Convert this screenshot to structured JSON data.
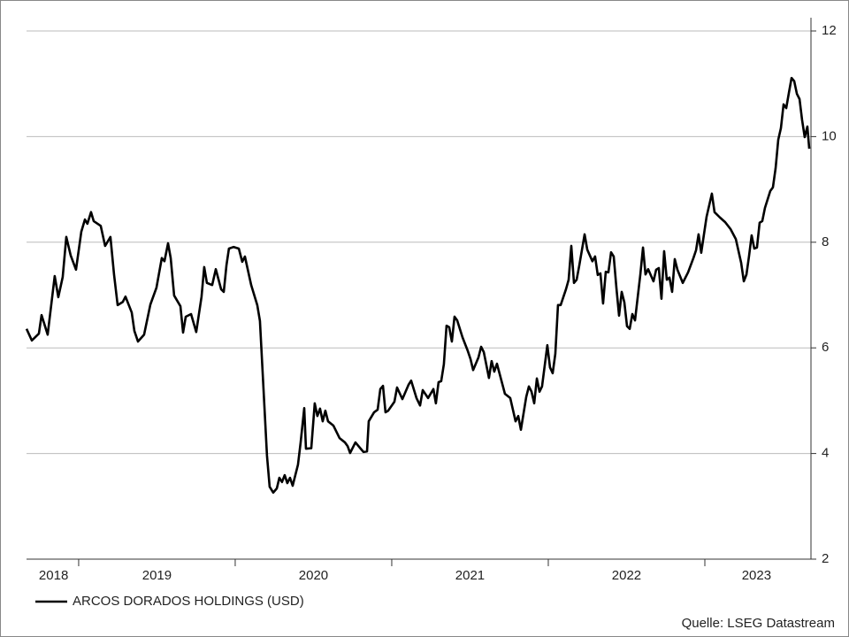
{
  "chart_data": {
    "type": "line",
    "xlim": [
      2018.667,
      2023.678
    ],
    "ylim": [
      2,
      12
    ],
    "yticks": [
      2,
      4,
      6,
      8,
      10,
      12
    ],
    "xticks": [
      2019,
      2020,
      2021,
      2022,
      2023
    ],
    "xtick_labels": [
      {
        "value": 2018.84,
        "label": "2018"
      },
      {
        "value": 2019.5,
        "label": "2019"
      },
      {
        "value": 2020.5,
        "label": "2020"
      },
      {
        "value": 2021.5,
        "label": "2021"
      },
      {
        "value": 2022.5,
        "label": "2022"
      },
      {
        "value": 2023.33,
        "label": "2023"
      }
    ],
    "grid": true,
    "legend": "bottom-left",
    "source": "Quelle: LSEG Datastream",
    "x": [
      2018.667,
      2018.701,
      2018.746,
      2018.763,
      2018.802,
      2018.847,
      2018.87,
      2018.898,
      2018.921,
      2018.949,
      2018.983,
      2019.017,
      2019.04,
      2019.056,
      2019.079,
      2019.096,
      2019.141,
      2019.169,
      2019.203,
      2019.226,
      2019.249,
      2019.282,
      2019.299,
      2019.339,
      2019.356,
      2019.379,
      2019.418,
      2019.458,
      2019.497,
      2019.531,
      2019.548,
      2019.571,
      2019.588,
      2019.61,
      2019.65,
      2019.667,
      2019.684,
      2019.718,
      2019.751,
      2019.785,
      2019.802,
      2019.819,
      2019.853,
      2019.876,
      2019.91,
      2019.927,
      2019.944,
      2019.96,
      2019.989,
      2020.023,
      2020.045,
      2020.062,
      2020.102,
      2020.141,
      2020.158,
      2020.175,
      2020.203,
      2020.22,
      2020.243,
      2020.266,
      2020.282,
      2020.299,
      2020.316,
      2020.333,
      2020.35,
      2020.367,
      2020.401,
      2020.418,
      2020.441,
      2020.452,
      2020.486,
      2020.508,
      2020.525,
      2020.542,
      2020.559,
      2020.576,
      2020.593,
      2020.627,
      2020.667,
      2020.701,
      2020.718,
      2020.734,
      2020.768,
      2020.802,
      2020.819,
      2020.842,
      2020.853,
      2020.887,
      2020.91,
      2020.927,
      2020.944,
      2020.96,
      2020.977,
      2021.017,
      2021.034,
      2021.068,
      2021.107,
      2021.124,
      2021.158,
      2021.181,
      2021.198,
      2021.232,
      2021.266,
      2021.282,
      2021.299,
      2021.316,
      2021.333,
      2021.35,
      2021.367,
      2021.384,
      2021.401,
      2021.418,
      2021.452,
      2021.486,
      2021.503,
      2021.52,
      2021.554,
      2021.571,
      2021.588,
      2021.621,
      2021.638,
      2021.655,
      2021.672,
      2021.706,
      2021.723,
      2021.757,
      2021.791,
      2021.808,
      2021.825,
      2021.859,
      2021.876,
      2021.893,
      2021.91,
      2021.927,
      2021.944,
      2021.96,
      2021.994,
      2022.011,
      2022.028,
      2022.045,
      2022.062,
      2022.079,
      2022.113,
      2022.13,
      2022.147,
      2022.164,
      2022.181,
      2022.198,
      2022.232,
      2022.249,
      2022.282,
      2022.299,
      2022.316,
      2022.333,
      2022.35,
      2022.367,
      2022.384,
      2022.401,
      2022.418,
      2022.435,
      2022.452,
      2022.469,
      2022.486,
      2022.503,
      2022.52,
      2022.537,
      2022.554,
      2022.588,
      2022.605,
      2022.621,
      2022.638,
      2022.672,
      2022.689,
      2022.706,
      2022.723,
      2022.74,
      2022.757,
      2022.774,
      2022.791,
      2022.808,
      2022.825,
      2022.859,
      2022.893,
      2022.927,
      2022.944,
      2022.96,
      2022.977,
      2023.011,
      2023.045,
      2023.062,
      2023.096,
      2023.13,
      2023.164,
      2023.198,
      2023.232,
      2023.249,
      2023.266,
      2023.282,
      2023.299,
      2023.316,
      2023.333,
      2023.35,
      2023.367,
      2023.384,
      2023.418,
      2023.435,
      2023.452,
      2023.469,
      2023.486,
      2023.503,
      2023.52,
      2023.537,
      2023.554,
      2023.571,
      2023.588,
      2023.605,
      2023.621,
      2023.638,
      2023.655,
      2023.667
    ],
    "series": [
      {
        "name": "ARCOS DORADOS HOLDINGS (USD)",
        "color": "#000000",
        "values": [
          6.36,
          6.14,
          6.27,
          6.62,
          6.25,
          7.36,
          6.96,
          7.34,
          8.1,
          7.75,
          7.48,
          8.2,
          8.43,
          8.35,
          8.57,
          8.4,
          8.31,
          7.93,
          8.1,
          7.39,
          6.81,
          6.87,
          6.97,
          6.67,
          6.32,
          6.12,
          6.25,
          6.82,
          7.14,
          7.7,
          7.64,
          7.98,
          7.7,
          6.99,
          6.79,
          6.29,
          6.59,
          6.64,
          6.3,
          6.97,
          7.53,
          7.23,
          7.19,
          7.49,
          7.11,
          7.06,
          7.56,
          7.88,
          7.91,
          7.88,
          7.63,
          7.73,
          7.19,
          6.81,
          6.51,
          5.55,
          3.96,
          3.37,
          3.26,
          3.34,
          3.54,
          3.46,
          3.59,
          3.44,
          3.54,
          3.39,
          3.79,
          4.21,
          4.86,
          4.09,
          4.1,
          4.95,
          4.71,
          4.85,
          4.61,
          4.81,
          4.61,
          4.53,
          4.29,
          4.21,
          4.14,
          4.01,
          4.21,
          4.09,
          4.03,
          4.04,
          4.61,
          4.78,
          4.83,
          5.22,
          5.28,
          4.78,
          4.81,
          4.98,
          5.25,
          5.03,
          5.3,
          5.38,
          5.05,
          4.91,
          5.2,
          5.05,
          5.22,
          4.95,
          5.35,
          5.37,
          5.69,
          6.42,
          6.39,
          6.12,
          6.59,
          6.52,
          6.2,
          5.94,
          5.79,
          5.58,
          5.82,
          6.02,
          5.92,
          5.43,
          5.75,
          5.55,
          5.7,
          5.32,
          5.13,
          5.05,
          4.61,
          4.71,
          4.45,
          5.07,
          5.27,
          5.17,
          4.95,
          5.42,
          5.17,
          5.27,
          6.05,
          5.63,
          5.52,
          5.89,
          6.81,
          6.81,
          7.11,
          7.29,
          7.93,
          7.23,
          7.29,
          7.56,
          8.15,
          7.86,
          7.64,
          7.73,
          7.38,
          7.41,
          6.84,
          7.44,
          7.43,
          7.81,
          7.73,
          7.14,
          6.61,
          7.06,
          6.86,
          6.41,
          6.36,
          6.64,
          6.52,
          7.39,
          7.9,
          7.39,
          7.49,
          7.26,
          7.48,
          7.51,
          6.93,
          7.83,
          7.29,
          7.33,
          7.06,
          7.68,
          7.48,
          7.23,
          7.43,
          7.7,
          7.85,
          8.15,
          7.8,
          8.48,
          8.92,
          8.57,
          8.47,
          8.38,
          8.25,
          8.06,
          7.61,
          7.26,
          7.39,
          7.73,
          8.13,
          7.88,
          7.9,
          8.37,
          8.4,
          8.65,
          8.97,
          9.04,
          9.4,
          9.94,
          10.16,
          10.61,
          10.54,
          10.83,
          11.11,
          11.05,
          10.81,
          10.71,
          10.32,
          9.99,
          10.19,
          9.77
        ]
      }
    ]
  }
}
